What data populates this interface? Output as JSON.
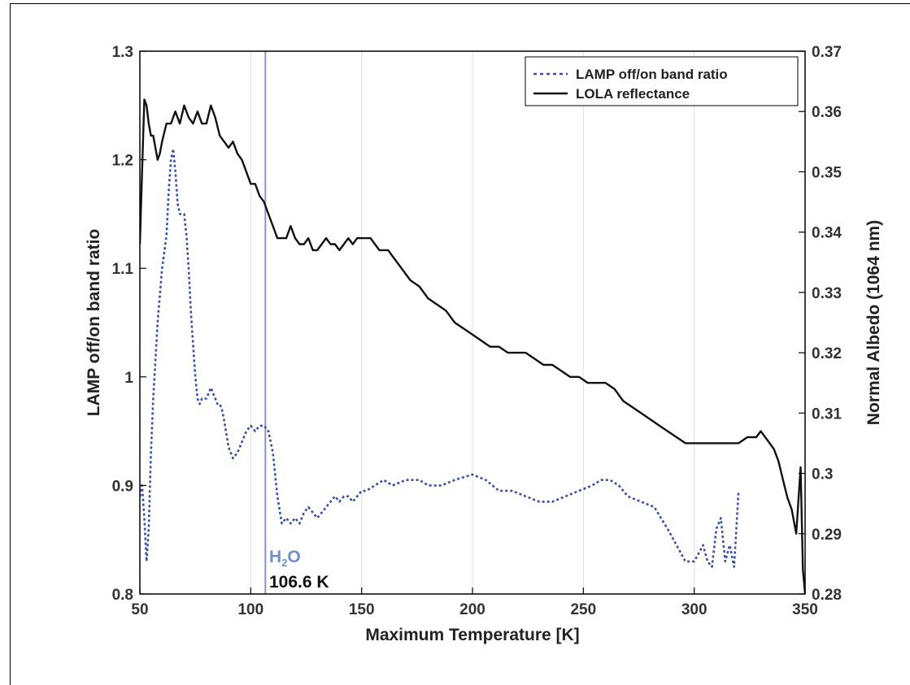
{
  "chart_data": {
    "type": "line",
    "xlabel": "Maximum Temperature [K]",
    "ylabel_left": "LAMP off/on band ratio",
    "ylabel_right": "Normal Albedo (1064 nm)",
    "xlim": [
      50,
      350
    ],
    "ylim_left": [
      0.8,
      1.3
    ],
    "ylim_right": [
      0.28,
      0.37
    ],
    "x_ticks": [
      "50",
      "100",
      "150",
      "200",
      "250",
      "300",
      "350"
    ],
    "y_ticks_left": [
      "0.8",
      "0.9",
      "1",
      "1.1",
      "1.2",
      "1.3"
    ],
    "y_ticks_right": [
      "0.28",
      "0.29",
      "0.3",
      "0.31",
      "0.32",
      "0.33",
      "0.34",
      "0.35",
      "0.36",
      "0.37"
    ],
    "grid": "vertical",
    "legend_position": "top-right",
    "vertical_marker": {
      "x": 106.6,
      "chemical": "H",
      "subscript": "2",
      "chemical_rest": "O",
      "label": "106.6 K"
    },
    "series": [
      {
        "name": "LAMP off/on band ratio",
        "axis": "left",
        "style": "dotted",
        "color": "#3a4fa8",
        "x": [
          50,
          51,
          52,
          53,
          54,
          55,
          56,
          58,
          60,
          62,
          63,
          64,
          65,
          66,
          67,
          68,
          69,
          70,
          71,
          72,
          73,
          74,
          75,
          76,
          77,
          78,
          79,
          80,
          82,
          84,
          85,
          86,
          87,
          88,
          90,
          92,
          94,
          96,
          98,
          100,
          102,
          104,
          106,
          108,
          110,
          112,
          114,
          116,
          118,
          120,
          122,
          124,
          126,
          128,
          130,
          132,
          134,
          136,
          138,
          140,
          142,
          144,
          146,
          148,
          150,
          152,
          156,
          160,
          164,
          170,
          176,
          180,
          186,
          192,
          200,
          206,
          212,
          218,
          224,
          230,
          236,
          242,
          248,
          254,
          258,
          262,
          266,
          270,
          276,
          282,
          288,
          292,
          296,
          300,
          304,
          306,
          308,
          310,
          312,
          314,
          316,
          318,
          320
        ],
        "y": [
          0.89,
          0.9,
          0.87,
          0.83,
          0.86,
          0.93,
          0.98,
          1.05,
          1.1,
          1.13,
          1.17,
          1.2,
          1.21,
          1.19,
          1.16,
          1.15,
          1.15,
          1.15,
          1.13,
          1.1,
          1.06,
          1.03,
          1.0,
          0.98,
          0.975,
          0.98,
          0.98,
          0.98,
          0.99,
          0.98,
          0.975,
          0.975,
          0.97,
          0.96,
          0.935,
          0.925,
          0.93,
          0.94,
          0.95,
          0.955,
          0.95,
          0.955,
          0.955,
          0.95,
          0.93,
          0.89,
          0.865,
          0.87,
          0.865,
          0.87,
          0.865,
          0.875,
          0.88,
          0.875,
          0.87,
          0.875,
          0.88,
          0.885,
          0.89,
          0.885,
          0.89,
          0.89,
          0.885,
          0.89,
          0.895,
          0.895,
          0.9,
          0.905,
          0.9,
          0.905,
          0.905,
          0.9,
          0.9,
          0.905,
          0.91,
          0.905,
          0.895,
          0.895,
          0.89,
          0.885,
          0.885,
          0.89,
          0.895,
          0.9,
          0.905,
          0.905,
          0.9,
          0.89,
          0.885,
          0.88,
          0.86,
          0.845,
          0.83,
          0.83,
          0.845,
          0.83,
          0.825,
          0.86,
          0.87,
          0.83,
          0.845,
          0.825,
          0.895
        ]
      },
      {
        "name": "LOLA reflectance",
        "axis": "right",
        "style": "solid",
        "color": "#111111",
        "x": [
          50,
          51,
          52,
          53,
          54,
          55,
          56,
          57,
          58,
          59,
          60,
          62,
          64,
          66,
          68,
          70,
          72,
          74,
          76,
          78,
          80,
          82,
          84,
          86,
          88,
          90,
          92,
          94,
          96,
          98,
          100,
          102,
          104,
          106,
          108,
          110,
          112,
          114,
          116,
          118,
          120,
          122,
          124,
          126,
          128,
          130,
          132,
          134,
          136,
          138,
          140,
          142,
          144,
          146,
          148,
          150,
          152,
          154,
          156,
          158,
          160,
          162,
          164,
          166,
          168,
          170,
          172,
          176,
          180,
          184,
          188,
          192,
          196,
          200,
          204,
          208,
          212,
          216,
          220,
          224,
          228,
          232,
          236,
          240,
          244,
          248,
          252,
          256,
          260,
          264,
          268,
          272,
          276,
          280,
          284,
          288,
          292,
          296,
          300,
          304,
          308,
          312,
          316,
          320,
          324,
          328,
          330,
          332,
          334,
          336,
          338,
          340,
          342,
          344,
          346,
          348,
          349,
          350
        ],
        "y": [
          0.338,
          0.35,
          0.362,
          0.361,
          0.358,
          0.356,
          0.356,
          0.354,
          0.352,
          0.353,
          0.355,
          0.358,
          0.358,
          0.36,
          0.358,
          0.361,
          0.359,
          0.358,
          0.36,
          0.358,
          0.358,
          0.361,
          0.359,
          0.356,
          0.355,
          0.354,
          0.355,
          0.353,
          0.352,
          0.35,
          0.348,
          0.348,
          0.346,
          0.345,
          0.343,
          0.341,
          0.339,
          0.339,
          0.339,
          0.341,
          0.339,
          0.338,
          0.338,
          0.339,
          0.337,
          0.337,
          0.338,
          0.339,
          0.338,
          0.338,
          0.337,
          0.338,
          0.339,
          0.338,
          0.339,
          0.339,
          0.339,
          0.339,
          0.338,
          0.337,
          0.337,
          0.337,
          0.336,
          0.335,
          0.334,
          0.333,
          0.332,
          0.331,
          0.329,
          0.328,
          0.327,
          0.325,
          0.324,
          0.323,
          0.322,
          0.321,
          0.321,
          0.32,
          0.32,
          0.32,
          0.319,
          0.318,
          0.318,
          0.317,
          0.316,
          0.316,
          0.315,
          0.315,
          0.315,
          0.314,
          0.312,
          0.311,
          0.31,
          0.309,
          0.308,
          0.307,
          0.306,
          0.305,
          0.305,
          0.305,
          0.305,
          0.305,
          0.305,
          0.305,
          0.306,
          0.306,
          0.307,
          0.306,
          0.305,
          0.304,
          0.302,
          0.299,
          0.296,
          0.294,
          0.29,
          0.301,
          0.284,
          0.28
        ]
      }
    ]
  }
}
